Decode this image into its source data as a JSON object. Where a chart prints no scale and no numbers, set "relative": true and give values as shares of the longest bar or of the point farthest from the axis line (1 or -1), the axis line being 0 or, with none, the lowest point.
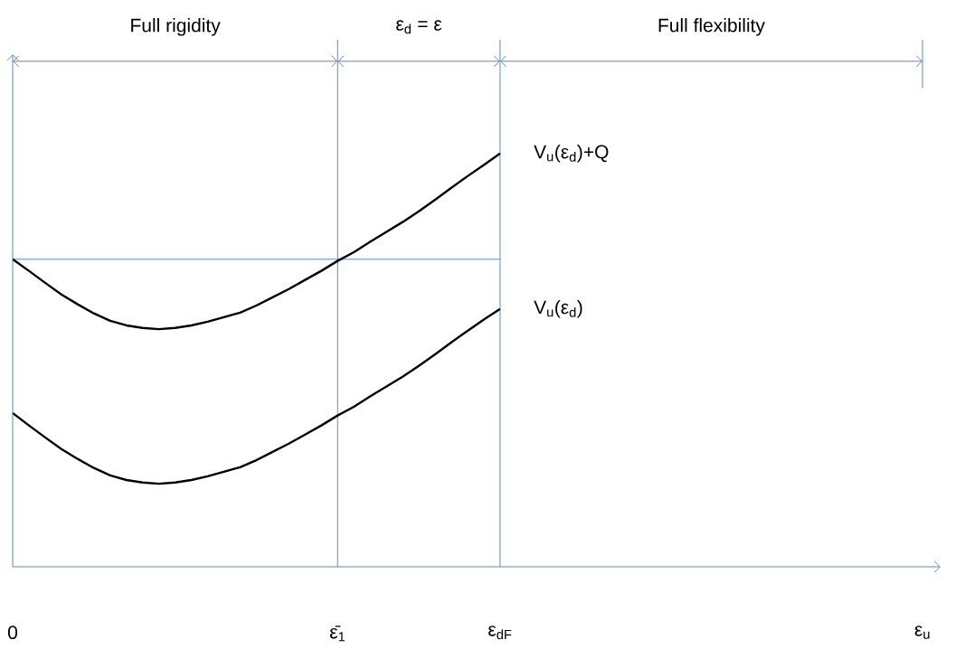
{
  "chart_data": {
    "type": "line",
    "relative": true,
    "categories": [
      "0",
      null,
      null,
      null,
      null,
      null,
      null,
      null,
      null,
      null,
      null,
      null,
      null,
      null,
      null,
      null,
      null,
      null,
      null,
      null,
      "ε̄$_{1}$",
      null,
      null,
      null,
      null,
      null,
      null,
      null,
      null,
      null,
      "ε$_{dF}$",
      null,
      null,
      null,
      null,
      null,
      null,
      null,
      null,
      null,
      null,
      null,
      null,
      null,
      null,
      null,
      null,
      null,
      null,
      null,
      null,
      null,
      null,
      null,
      null,
      null,
      "ε$_{u}$"
    ],
    "series": [
      {
        "name": "V$_{u}$(ε$_{d}$)+Q",
        "color": "#000000",
        "values": [
          0.744,
          0.716,
          0.687,
          0.659,
          0.635,
          0.613,
          0.595,
          0.584,
          0.578,
          0.575,
          0.578,
          0.584,
          0.593,
          0.604,
          0.615,
          0.632,
          0.652,
          0.672,
          0.694,
          0.716,
          0.74,
          0.761,
          0.786,
          0.81,
          0.834,
          0.86,
          0.888,
          0.917,
          0.945,
          0.972,
          1,
          null,
          null,
          null,
          null,
          null,
          null,
          null,
          null,
          null,
          null,
          null,
          null,
          null,
          null,
          null,
          null,
          null,
          null,
          null,
          null,
          null,
          null,
          null,
          null,
          null,
          null
        ]
      },
      {
        "name": "V$_{u}$(ε$_{d}$)",
        "color": "#000000",
        "values": [
          0.372,
          0.342,
          0.313,
          0.285,
          0.261,
          0.239,
          0.221,
          0.21,
          0.204,
          0.201,
          0.204,
          0.21,
          0.219,
          0.23,
          0.241,
          0.258,
          0.278,
          0.298,
          0.32,
          0.342,
          0.366,
          0.387,
          0.412,
          0.436,
          0.46,
          0.486,
          0.514,
          0.543,
          0.571,
          0.598,
          0.624,
          null,
          null,
          null,
          null,
          null,
          null,
          null,
          null,
          null,
          null,
          null,
          null,
          null,
          null,
          null,
          null,
          null,
          null,
          null,
          null,
          null,
          null,
          null,
          null,
          null,
          null
        ]
      }
    ],
    "ref_lines": [
      {
        "axis": "x",
        "value": "ε̄$_{1}$",
        "color": "#4a7ebb"
      },
      {
        "axis": "x",
        "value": "ε$_{dF}$",
        "color": "#4a7ebb"
      },
      {
        "axis": "y",
        "value": 0.744,
        "color": "#4a7ebb"
      }
    ],
    "annotations": [
      "Full rigidity",
      "ε$_{d}$ = ε",
      "Full flexibility"
    ],
    "marker": "none",
    "line_style": "solid"
  }
}
